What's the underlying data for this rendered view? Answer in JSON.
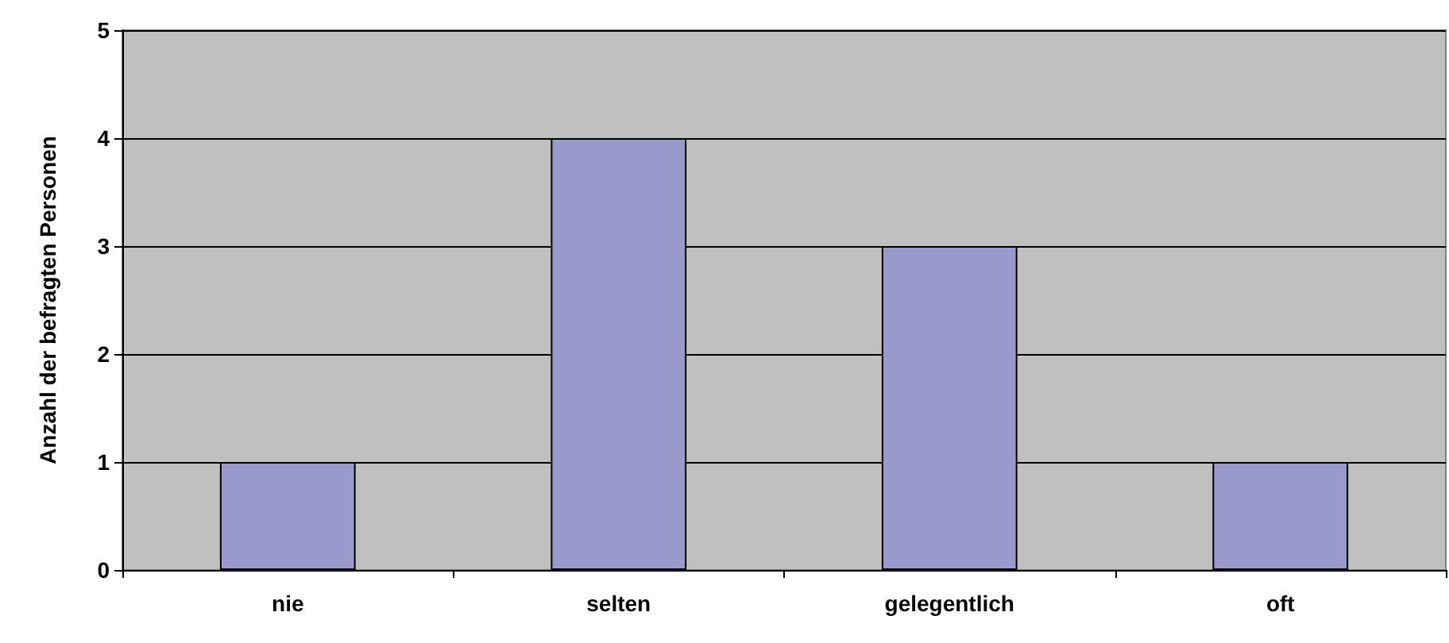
{
  "chart_data": {
    "type": "bar",
    "ylabel": "Anzahl der befragten Personen",
    "categories": [
      "nie",
      "selten",
      "gelegentlich",
      "oft"
    ],
    "values": [
      1,
      4,
      3,
      1
    ],
    "color": "#9999cc",
    "ylim": [
      0,
      5
    ],
    "yticks": [
      0,
      1,
      2,
      3,
      4,
      5
    ],
    "grid": "y"
  }
}
